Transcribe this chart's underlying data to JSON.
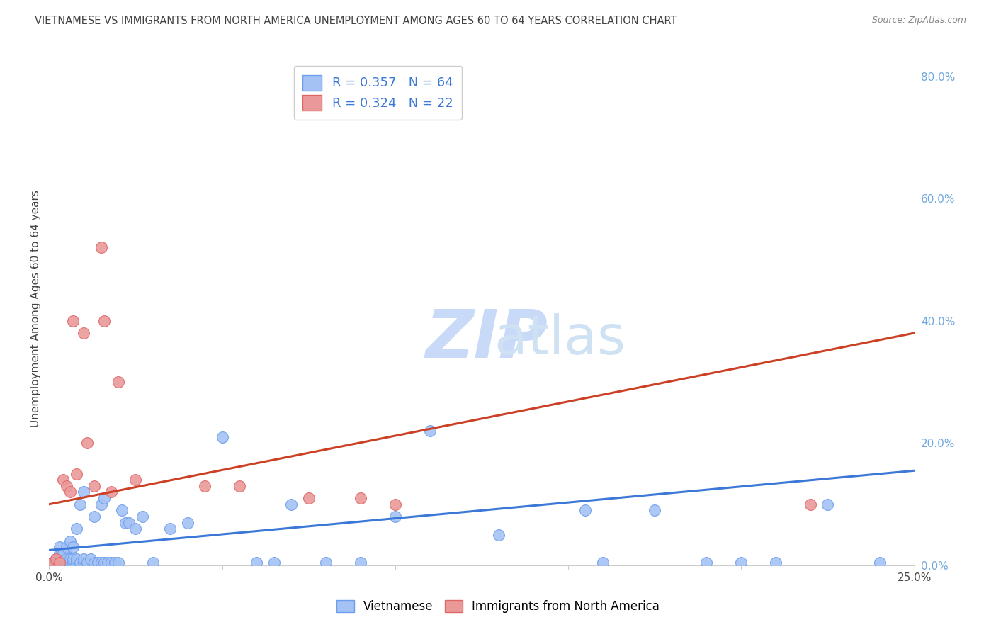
{
  "title": "VIETNAMESE VS IMMIGRANTS FROM NORTH AMERICA UNEMPLOYMENT AMONG AGES 60 TO 64 YEARS CORRELATION CHART",
  "source": "Source: ZipAtlas.com",
  "ylabel": "Unemployment Among Ages 60 to 64 years",
  "xlim": [
    0.0,
    0.25
  ],
  "ylim": [
    0.0,
    0.84
  ],
  "xticks": [
    0.0,
    0.05,
    0.1,
    0.15,
    0.2,
    0.25
  ],
  "xtick_labels": [
    "0.0%",
    "",
    "",
    "",
    "",
    "25.0%"
  ],
  "ytick_vals_right": [
    0.0,
    0.2,
    0.4,
    0.6,
    0.8
  ],
  "ytick_labels_right": [
    "0.0%",
    "20.0%",
    "40.0%",
    "60.0%",
    "80.0%"
  ],
  "legend_r1": "R = 0.357",
  "legend_n1": "N = 64",
  "legend_r2": "R = 0.324",
  "legend_n2": "N = 22",
  "color_blue": "#a4c2f4",
  "color_pink": "#ea9999",
  "color_blue_edge": "#6d9eeb",
  "color_pink_edge": "#e06666",
  "color_blue_line": "#3c78d8",
  "color_pink_line": "#cc4125",
  "right_tick_color": "#6fa8dc",
  "grid_color": "#cccccc",
  "bg_color": "#ffffff",
  "title_color": "#434343",
  "axis_label_color": "#434343",
  "blue_scatter_x": [
    0.001,
    0.002,
    0.002,
    0.003,
    0.003,
    0.003,
    0.004,
    0.004,
    0.004,
    0.005,
    0.005,
    0.005,
    0.006,
    0.006,
    0.006,
    0.007,
    0.007,
    0.007,
    0.008,
    0.008,
    0.008,
    0.009,
    0.009,
    0.01,
    0.01,
    0.01,
    0.011,
    0.012,
    0.013,
    0.013,
    0.014,
    0.015,
    0.015,
    0.016,
    0.016,
    0.017,
    0.018,
    0.019,
    0.02,
    0.021,
    0.022,
    0.023,
    0.025,
    0.027,
    0.03,
    0.035,
    0.04,
    0.05,
    0.06,
    0.065,
    0.07,
    0.08,
    0.09,
    0.1,
    0.11,
    0.13,
    0.155,
    0.16,
    0.175,
    0.19,
    0.2,
    0.21,
    0.225,
    0.24
  ],
  "blue_scatter_y": [
    0.005,
    0.005,
    0.01,
    0.005,
    0.02,
    0.03,
    0.005,
    0.01,
    0.02,
    0.005,
    0.01,
    0.03,
    0.005,
    0.01,
    0.04,
    0.005,
    0.01,
    0.03,
    0.005,
    0.01,
    0.06,
    0.005,
    0.1,
    0.005,
    0.01,
    0.12,
    0.005,
    0.01,
    0.005,
    0.08,
    0.005,
    0.005,
    0.1,
    0.005,
    0.11,
    0.005,
    0.005,
    0.005,
    0.005,
    0.09,
    0.07,
    0.07,
    0.06,
    0.08,
    0.005,
    0.06,
    0.07,
    0.21,
    0.005,
    0.005,
    0.1,
    0.005,
    0.005,
    0.08,
    0.22,
    0.05,
    0.09,
    0.005,
    0.09,
    0.005,
    0.005,
    0.005,
    0.1,
    0.005
  ],
  "pink_scatter_x": [
    0.001,
    0.002,
    0.003,
    0.004,
    0.005,
    0.006,
    0.007,
    0.008,
    0.01,
    0.011,
    0.013,
    0.015,
    0.016,
    0.018,
    0.02,
    0.025,
    0.045,
    0.055,
    0.075,
    0.09,
    0.1,
    0.22
  ],
  "pink_scatter_y": [
    0.005,
    0.01,
    0.005,
    0.14,
    0.13,
    0.12,
    0.4,
    0.15,
    0.38,
    0.2,
    0.13,
    0.52,
    0.4,
    0.12,
    0.3,
    0.14,
    0.13,
    0.13,
    0.11,
    0.11,
    0.1,
    0.1
  ],
  "blue_line_x": [
    0.0,
    0.25
  ],
  "blue_line_y": [
    0.025,
    0.155
  ],
  "pink_line_x": [
    0.0,
    0.25
  ],
  "pink_line_y": [
    0.1,
    0.38
  ],
  "watermark_zip_color": "#c9daf8",
  "watermark_atlas_color": "#cfe2f3"
}
